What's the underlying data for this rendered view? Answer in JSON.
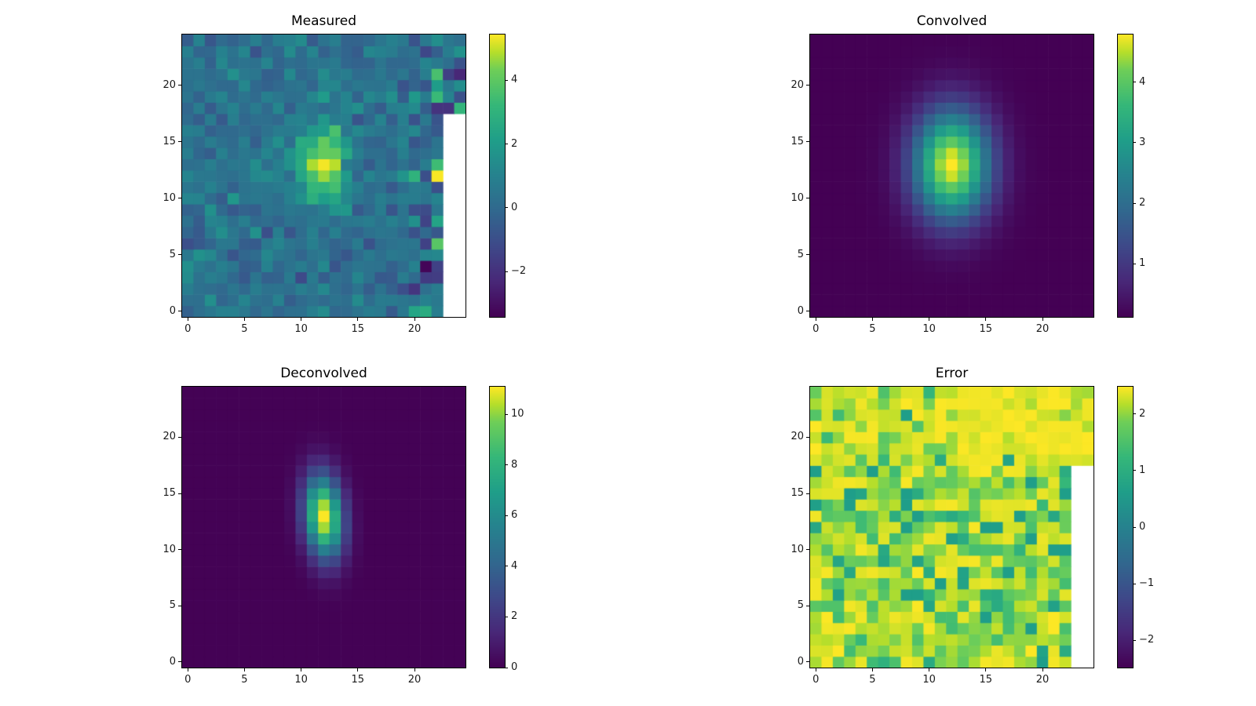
{
  "figure": {
    "background": "#ffffff",
    "colormap": "viridis",
    "layout": "2x2-grid-of-heatmaps"
  },
  "chart_data": {
    "type": "heatmap",
    "panels": [
      {
        "title": "Measured",
        "grid": {
          "ncols": 25,
          "nrows": 25
        },
        "x_range": [
          -0.5,
          24.5
        ],
        "y_range": [
          -0.5,
          24.5
        ],
        "x_ticks": [
          0,
          5,
          10,
          15,
          20
        ],
        "y_ticks": [
          0,
          5,
          10,
          15,
          20
        ],
        "colorbar": {
          "vmin": -3.42,
          "vmax": 5.43,
          "ticks": [
            -2,
            0,
            2,
            4
          ]
        },
        "signal": {
          "kind": "gaussian_plus_noise",
          "amplitude": 4.9,
          "center_x": 12,
          "center_y": 13,
          "sigma_x": 1.55,
          "sigma_y": 2.3,
          "tilt": 0,
          "noise_mean": 0.35,
          "noise_sd": 0.55,
          "edge_boost_col_from": 20,
          "edge_boost_sd": 1.0,
          "seed": 20
        },
        "nan_region": {
          "col_from": 23,
          "col_to": 24,
          "row_from": 0,
          "row_to": 17
        },
        "overrides": [
          {
            "x": 22,
            "y": 12,
            "v": 5.4
          },
          {
            "x": 22,
            "y": 13,
            "v": 3.4
          },
          {
            "x": 22,
            "y": 6,
            "v": 3.9
          },
          {
            "x": 21,
            "y": 4,
            "v": -3.3
          },
          {
            "x": 22,
            "y": 3,
            "v": -1.6
          },
          {
            "x": 21,
            "y": 8,
            "v": -1.4
          },
          {
            "x": 21,
            "y": 9,
            "v": -1.1
          },
          {
            "x": 22,
            "y": 21,
            "v": 3.6
          },
          {
            "x": 22,
            "y": 19,
            "v": 3.3
          },
          {
            "x": 24,
            "y": 18,
            "v": 3.1
          },
          {
            "x": 24,
            "y": 22,
            "v": -0.9
          },
          {
            "x": 21,
            "y": 0,
            "v": 2.7
          },
          {
            "x": 20,
            "y": 0,
            "v": 2.4
          }
        ]
      },
      {
        "title": "Convolved",
        "grid": {
          "ncols": 25,
          "nrows": 25
        },
        "x_range": [
          -0.5,
          24.5
        ],
        "y_range": [
          -0.5,
          24.5
        ],
        "x_ticks": [
          0,
          5,
          10,
          15,
          20
        ],
        "y_ticks": [
          0,
          5,
          10,
          15,
          20
        ],
        "colorbar": {
          "vmin": 0.12,
          "vmax": 4.79,
          "ticks": [
            1,
            2,
            3,
            4
          ]
        },
        "signal": {
          "kind": "gaussian",
          "amplitude": 4.67,
          "center_x": 12,
          "center_y": 13,
          "sigma_x": 2.35,
          "sigma_y": 3.35,
          "tilt": 0,
          "background": 0.12
        },
        "nan_region": null,
        "overrides": []
      },
      {
        "title": "Deconvolved",
        "grid": {
          "ncols": 25,
          "nrows": 25
        },
        "x_range": [
          -0.5,
          24.5
        ],
        "y_range": [
          -0.5,
          24.5
        ],
        "x_ticks": [
          0,
          5,
          10,
          15,
          20
        ],
        "y_ticks": [
          0,
          5,
          10,
          15,
          20
        ],
        "colorbar": {
          "vmin": 0.0,
          "vmax": 11.1,
          "ticks": [
            0,
            2,
            4,
            6,
            8,
            10
          ]
        },
        "signal": {
          "kind": "gaussian",
          "amplitude": 11.05,
          "center_x": 12,
          "center_y": 13,
          "sigma_x": 1.15,
          "sigma_y": 2.5,
          "tilt": 0.15,
          "background": 0.02
        },
        "nan_region": null,
        "overrides": []
      },
      {
        "title": "Error",
        "grid": {
          "ncols": 25,
          "nrows": 25
        },
        "x_range": [
          -0.5,
          24.5
        ],
        "y_range": [
          -0.5,
          24.5
        ],
        "x_ticks": [
          0,
          5,
          10,
          15,
          20
        ],
        "y_ticks": [
          0,
          5,
          10,
          15,
          20
        ],
        "colorbar": {
          "vmin": -2.48,
          "vmax": 2.48,
          "ticks": [
            -2,
            -1,
            0,
            1,
            2
          ]
        },
        "signal": {
          "kind": "clipped_noise",
          "base": 2.48,
          "tail_scale": 0.65,
          "max_drop": 1.85,
          "flat_row_from": 18,
          "flat_col_from": 13,
          "flat_factor": 0.15,
          "flat_left_factor": 0.5,
          "seed": 77
        },
        "nan_region": {
          "col_from": 23,
          "col_to": 24,
          "row_from": 0,
          "row_to": 17
        },
        "overrides": [
          {
            "x": 17,
            "y": 18,
            "v": 0.75
          },
          {
            "x": 21,
            "y": 13,
            "v": 0.85
          },
          {
            "x": 6,
            "y": 9,
            "v": 0.8
          },
          {
            "x": 6,
            "y": 10,
            "v": 0.9
          },
          {
            "x": 9,
            "y": 15,
            "v": 0.95
          },
          {
            "x": 16,
            "y": 6,
            "v": 0.9
          },
          {
            "x": 15,
            "y": 6,
            "v": 1.0
          }
        ]
      }
    ]
  }
}
